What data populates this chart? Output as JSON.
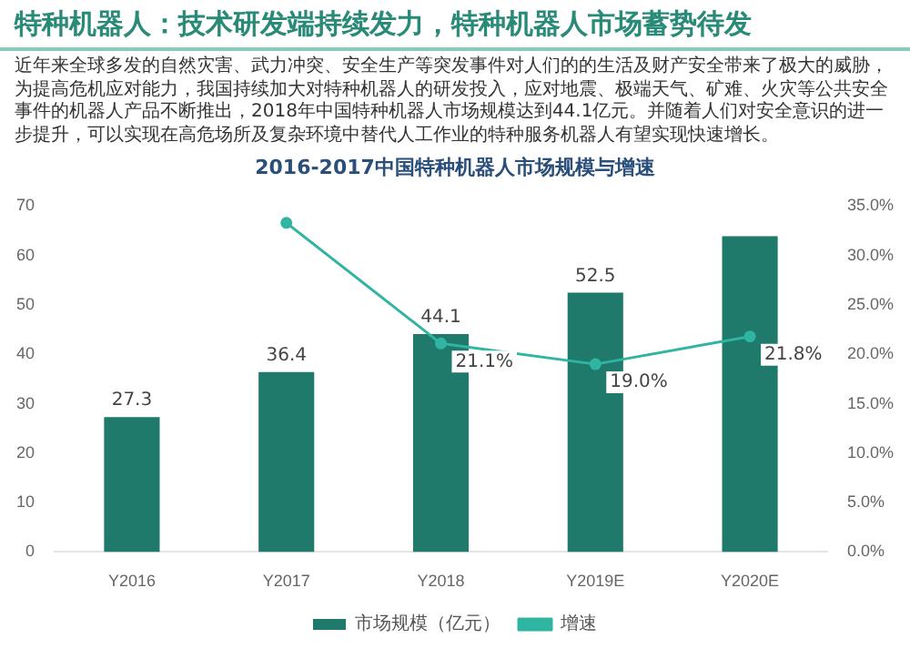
{
  "chart_data": {
    "type": "bar",
    "title": "特种机器人：技术研发端持续发力，特种机器人市场蓄势待发",
    "subtitle": "2016-2017中国特种机器人市场规模与增速",
    "annotations": [
      "近年来全球多发的自然灾害、武力冲突、安全生产等突发事件对人们的的生活及财产安全带来了极大的威胁，为提高危机应对能力，我国持续加大对特种机器人的研发投入，应对地震、极端天气、矿难、火灾等公共安全事件的机器人产品不断推出，2018年中国特种机器人市场规模达到44.1亿元。并随着人们对安全意识的进一步提升，可以实现在高危场所及复杂环境中替代人工作业的特种服务机器人有望实现快速增长。"
    ],
    "categories": [
      "Y2016",
      "Y2017",
      "Y2018",
      "Y2019E",
      "Y2020E"
    ],
    "series": [
      {
        "name": "市场规模（亿元）",
        "color": "#1f7a6c",
        "values": [
          27.3,
          36.4,
          44.1,
          52.5,
          63.9
        ],
        "value_labels": [
          "27.3",
          "36.4",
          "44.1",
          "52.5",
          null
        ]
      },
      {
        "name": "增速",
        "type": "line",
        "axis": "y2",
        "color": "#2fb5a2",
        "values": [
          null,
          33.3,
          21.1,
          19.0,
          21.8
        ],
        "value_labels": [
          null,
          null,
          "21.1%",
          "19.0%",
          "21.8%"
        ]
      }
    ],
    "ylim": [
      0,
      70
    ],
    "yticks": [
      0,
      10,
      20,
      30,
      40,
      50,
      60,
      70
    ],
    "y2lim": [
      0,
      35
    ],
    "y2ticks": [
      {
        "value": 0,
        "label": "0.0%"
      },
      {
        "value": 5,
        "label": "5.0%"
      },
      {
        "value": 10,
        "label": "10.0%"
      },
      {
        "value": 15,
        "label": "15.0%"
      },
      {
        "value": 20,
        "label": "20.0%"
      },
      {
        "value": 25,
        "label": "25.0%"
      },
      {
        "value": 30,
        "label": "30.0%"
      },
      {
        "value": 35,
        "label": "35.0%"
      }
    ],
    "legend": "bottom",
    "marker": "circle"
  }
}
